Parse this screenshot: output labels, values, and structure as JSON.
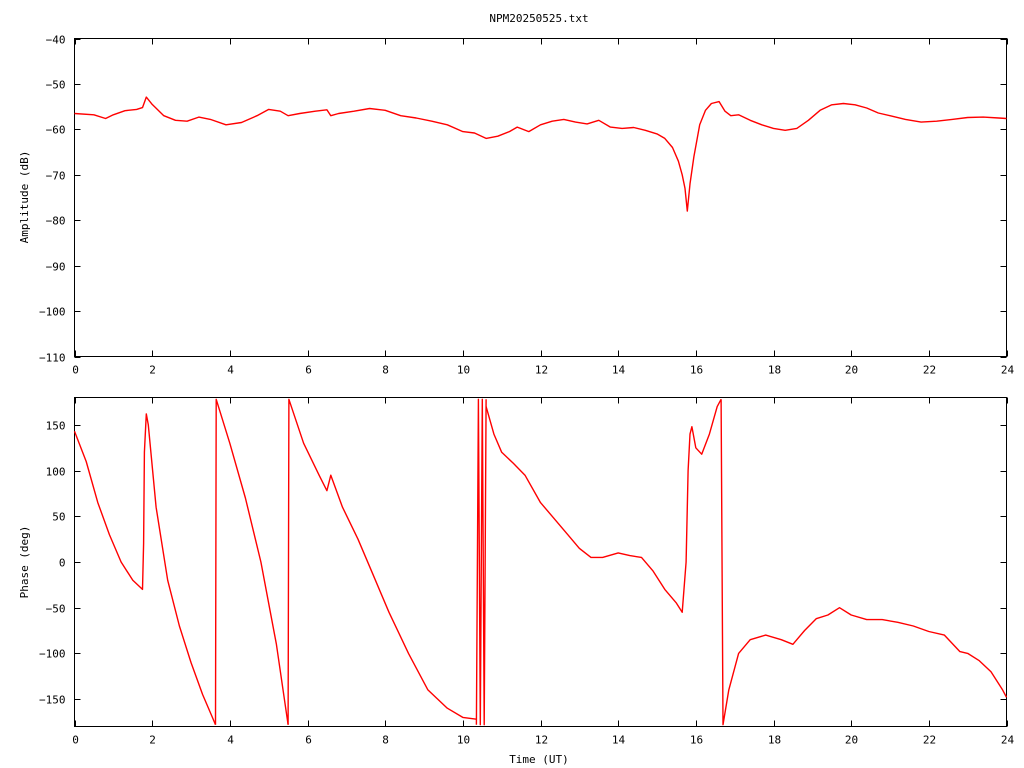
{
  "title": "NPM20250525.txt",
  "chart_data": [
    {
      "type": "line",
      "panel": "amplitude",
      "ylabel": "Amplitude (dB)",
      "xlabel": "",
      "xlim": [
        0,
        24
      ],
      "ylim": [
        -110,
        -40
      ],
      "xticks": [
        0,
        2,
        4,
        6,
        8,
        10,
        12,
        14,
        16,
        18,
        20,
        22,
        24
      ],
      "yticks": [
        -110,
        -100,
        -90,
        -80,
        -70,
        -60,
        -50,
        -40
      ],
      "ytick_labels": [
        "−110",
        "−100",
        "−90",
        "−80",
        "−70",
        "−60",
        "−50",
        "−40"
      ],
      "grid": false,
      "color": "#ff0000",
      "series": [
        {
          "x": [
            0,
            0.5,
            0.8,
            1.0,
            1.3,
            1.6,
            1.75,
            1.85,
            2.0,
            2.3,
            2.6,
            2.9,
            3.2,
            3.5,
            3.9,
            4.3,
            4.7,
            5.0,
            5.3,
            5.5,
            5.8,
            6.2,
            6.5,
            6.6,
            6.8,
            7.2,
            7.6,
            8.0,
            8.4,
            8.8,
            9.2,
            9.6,
            10.0,
            10.3,
            10.6,
            10.9,
            11.2,
            11.4,
            11.7,
            12.0,
            12.3,
            12.6,
            12.9,
            13.2,
            13.5,
            13.8,
            14.1,
            14.4,
            14.7,
            15.0,
            15.2,
            15.4,
            15.55,
            15.65,
            15.72,
            15.78,
            15.85,
            15.95,
            16.1,
            16.25,
            16.4,
            16.6,
            16.75,
            16.9,
            17.1,
            17.4,
            17.7,
            18.0,
            18.3,
            18.6,
            18.9,
            19.2,
            19.5,
            19.8,
            20.1,
            20.4,
            20.7,
            21.0,
            21.4,
            21.8,
            22.2,
            22.6,
            23.0,
            23.4,
            23.8,
            24.0
          ],
          "y": [
            -56.5,
            -56.8,
            -57.6,
            -56.8,
            -55.9,
            -55.6,
            -55.2,
            -52.9,
            -54.5,
            -57.0,
            -58.0,
            -58.2,
            -57.3,
            -57.8,
            -59.0,
            -58.5,
            -57.0,
            -55.6,
            -56.0,
            -57.0,
            -56.5,
            -56.0,
            -55.7,
            -57.0,
            -56.5,
            -56.0,
            -55.4,
            -55.8,
            -57.0,
            -57.5,
            -58.2,
            -59.0,
            -60.5,
            -60.8,
            -62.0,
            -61.5,
            -60.5,
            -59.5,
            -60.5,
            -59.0,
            -58.2,
            -57.8,
            -58.4,
            -58.8,
            -58.0,
            -59.5,
            -59.8,
            -59.6,
            -60.2,
            -61.0,
            -62.0,
            -64.0,
            -67.0,
            -70.0,
            -73.0,
            -78.0,
            -72.0,
            -66.0,
            -59.0,
            -55.8,
            -54.3,
            -53.9,
            -56.0,
            -57.0,
            -56.8,
            -58.0,
            -59.0,
            -59.8,
            -60.2,
            -59.8,
            -58.0,
            -55.8,
            -54.6,
            -54.3,
            -54.6,
            -55.3,
            -56.4,
            -57.0,
            -57.8,
            -58.4,
            -58.2,
            -57.8,
            -57.4,
            -57.3,
            -57.5,
            -57.6
          ]
        }
      ]
    },
    {
      "type": "line",
      "panel": "phase",
      "ylabel": "Phase (deg)",
      "xlabel": "Time (UT)",
      "xlim": [
        0,
        24
      ],
      "ylim": [
        -180,
        180
      ],
      "xticks": [
        0,
        2,
        4,
        6,
        8,
        10,
        12,
        14,
        16,
        18,
        20,
        22,
        24
      ],
      "yticks": [
        -150,
        -100,
        -50,
        0,
        50,
        100,
        150
      ],
      "ytick_labels": [
        "−150",
        "−100",
        "−50",
        "0",
        "50",
        "100",
        "150"
      ],
      "grid": false,
      "color": "#ff0000",
      "series": [
        {
          "segments": [
            {
              "x": [
                0,
                0.3,
                0.6,
                0.9,
                1.2,
                1.5,
                1.75,
                1.78,
                1.8,
                1.85,
                1.9,
                2.1,
                2.4,
                2.7,
                3.0,
                3.3,
                3.55,
                3.63
              ],
              "y": [
                143,
                110,
                65,
                30,
                0,
                -20,
                -30,
                20,
                120,
                162,
                150,
                60,
                -20,
                -70,
                -110,
                -145,
                -170,
                -178
              ]
            },
            {
              "x": [
                3.63,
                3.65,
                4.0,
                4.4,
                4.8,
                5.2,
                5.5
              ],
              "y": [
                -178,
                178,
                130,
                70,
                0,
                -90,
                -178
              ]
            },
            {
              "x": [
                5.5,
                5.52,
                5.9,
                6.3,
                6.5,
                6.6,
                6.9,
                7.3,
                7.7,
                8.1,
                8.6,
                9.1,
                9.6,
                10.0,
                10.35
              ],
              "y": [
                -178,
                178,
                130,
                95,
                78,
                95,
                60,
                25,
                -15,
                -55,
                -100,
                -140,
                -160,
                -170,
                -172
              ]
            },
            {
              "x": [
                10.35,
                10.4,
                10.45,
                10.5,
                10.55,
                10.6
              ],
              "y": [
                -178,
                178,
                -178,
                178,
                -178,
                178
              ]
            },
            {
              "x": [
                10.6,
                10.8,
                11.0,
                11.3,
                11.6,
                12.0,
                12.3,
                12.7,
                13.0,
                13.3,
                13.6,
                14.0,
                14.3,
                14.6,
                14.9,
                15.2,
                15.5,
                15.65,
                15.75,
                15.8,
                15.85,
                15.9,
                16.0,
                16.15,
                16.35,
                16.55,
                16.65
              ],
              "y": [
                170,
                140,
                120,
                108,
                95,
                65,
                50,
                30,
                15,
                5,
                5,
                10,
                7,
                5,
                -10,
                -30,
                -45,
                -55,
                0,
                100,
                140,
                148,
                125,
                118,
                140,
                170,
                178
              ]
            },
            {
              "x": [
                16.65,
                16.7,
                16.85,
                17.1,
                17.4,
                17.8,
                18.2,
                18.5,
                18.8,
                19.1,
                19.4,
                19.7,
                20.0,
                20.4,
                20.8,
                21.2,
                21.6,
                22.0,
                22.4,
                22.8,
                23.0,
                23.3,
                23.6,
                23.9,
                24.0
              ],
              "y": [
                178,
                -178,
                -140,
                -100,
                -85,
                -80,
                -85,
                -90,
                -75,
                -62,
                -58,
                -50,
                -58,
                -63,
                -63,
                -66,
                -70,
                -76,
                -80,
                -98,
                -100,
                -108,
                -120,
                -140,
                -148
              ]
            }
          ]
        }
      ]
    }
  ]
}
